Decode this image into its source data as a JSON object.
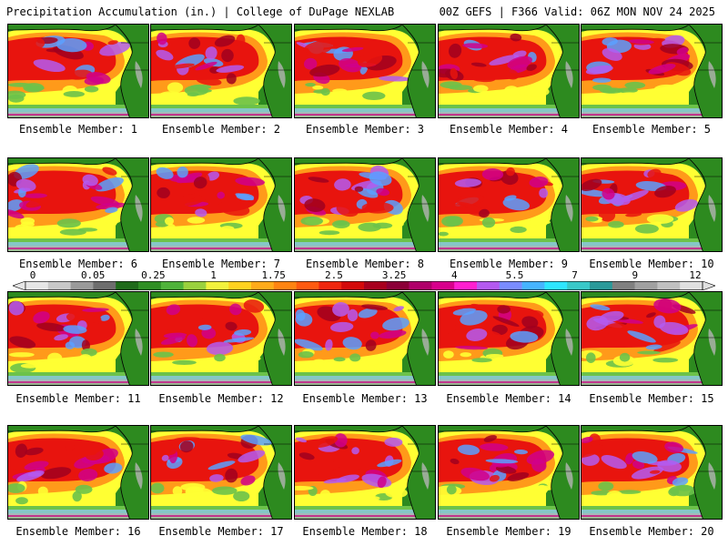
{
  "header": {
    "title": "Precipitation Accumulation (in.) | College of DuPage NEXLAB",
    "model_info": "00Z GEFS | F366 Valid: 06Z MON NOV 24 2025"
  },
  "panels": [
    {
      "caption": "Ensemble Member: 1"
    },
    {
      "caption": "Ensemble Member: 2"
    },
    {
      "caption": "Ensemble Member: 3"
    },
    {
      "caption": "Ensemble Member: 4"
    },
    {
      "caption": "Ensemble Member: 5"
    },
    {
      "caption": "Ensemble Member: 6"
    },
    {
      "caption": "Ensemble Member: 7"
    },
    {
      "caption": "Ensemble Member: 8"
    },
    {
      "caption": "Ensemble Member: 9"
    },
    {
      "caption": "Ensemble Member: 10"
    },
    {
      "caption": "Ensemble Member: 11"
    },
    {
      "caption": "Ensemble Member: 12"
    },
    {
      "caption": "Ensemble Member: 13"
    },
    {
      "caption": "Ensemble Member: 14"
    },
    {
      "caption": "Ensemble Member: 15"
    },
    {
      "caption": "Ensemble Member: 16"
    },
    {
      "caption": "Ensemble Member: 17"
    },
    {
      "caption": "Ensemble Member: 18"
    },
    {
      "caption": "Ensemble Member: 19"
    },
    {
      "caption": "Ensemble Member: 20"
    }
  ],
  "colorbar": {
    "labels": [
      "0",
      "0.05",
      "0.25",
      "1",
      "1.75",
      "2.5",
      "3.25",
      "4",
      "5.5",
      "7",
      "9",
      "12"
    ],
    "colors": [
      "#e6e6e6",
      "#c8c8c8",
      "#9a9a9a",
      "#6e6e6e",
      "#1f6b1a",
      "#2f8f24",
      "#4fb33a",
      "#9ad13e",
      "#f2f23c",
      "#ffd21f",
      "#ffab1a",
      "#ff8412",
      "#ff5a10",
      "#f0260e",
      "#d40a0a",
      "#a8001e",
      "#8c0038",
      "#b0006a",
      "#d8008c",
      "#ff1fd0",
      "#b45af0",
      "#7a8cff",
      "#46b4ff",
      "#2ee6ff",
      "#38c8c8",
      "#2a9a9a",
      "#808080",
      "#a0a0a0",
      "#c0c0c0",
      "#e0e0e0"
    ]
  },
  "map_palette": {
    "ocean_light": "#ffff33",
    "ocean_orange": "#ff9a1a",
    "ocean_red": "#e8140e",
    "ocean_darkred": "#a0001e",
    "ocean_magenta": "#d0008a",
    "ocean_violet": "#b45af0",
    "ocean_blue": "#5aa0ff",
    "land_green": "#2d8a1f",
    "land_light": "#6cc24a",
    "tropics_cyan": "#8cc8e6",
    "tropics_gray": "#b4b4b4",
    "coast_outline": "#000000"
  }
}
